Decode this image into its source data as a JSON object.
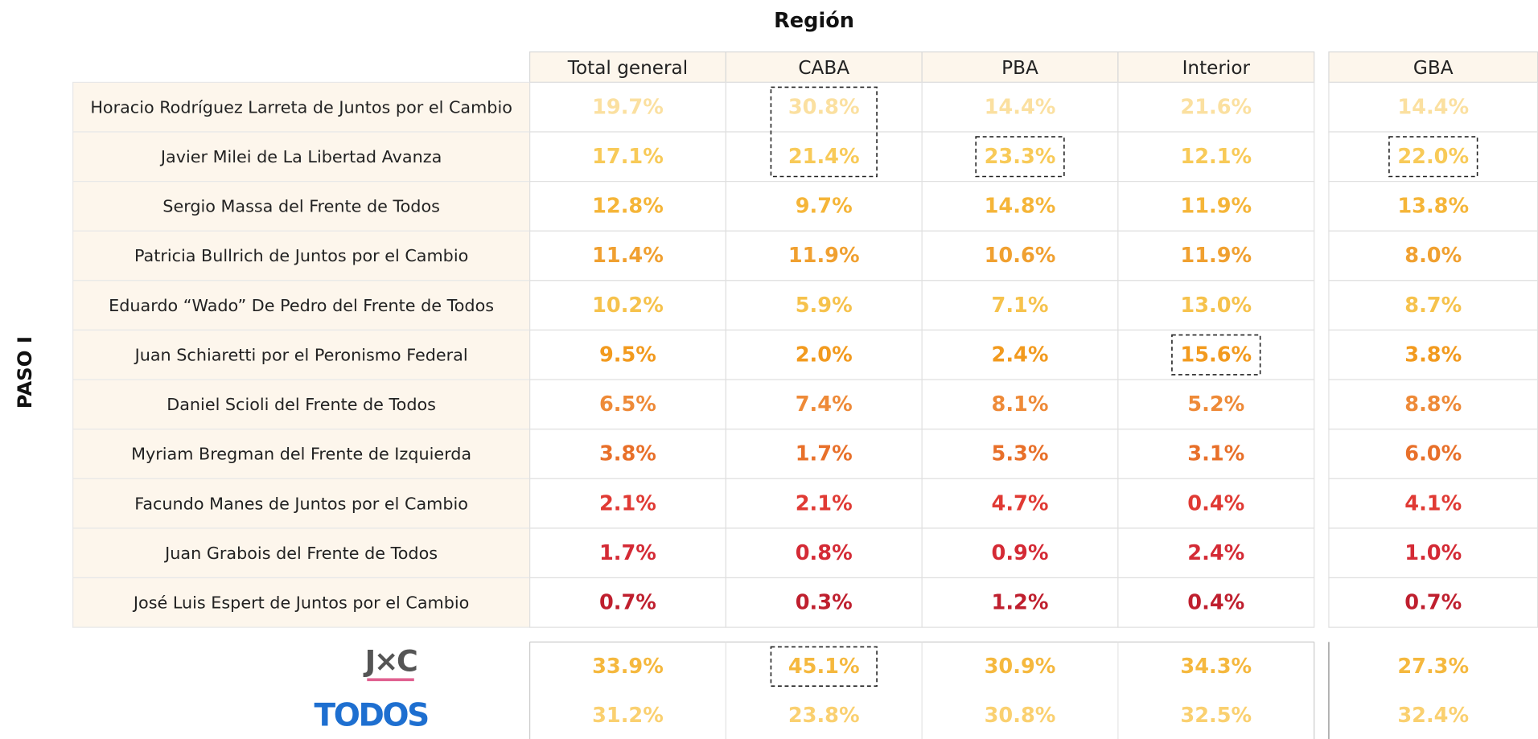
{
  "title": "Región",
  "side_label": "PASO I",
  "table": {
    "columns": [
      "Total general",
      "CABA",
      "PBA",
      "Interior",
      "GBA"
    ],
    "rows": [
      {
        "label": "Horacio Rodríguez Larreta de Juntos por el Cambio",
        "values": [
          "19.7%",
          "30.8%",
          "14.4%",
          "21.6%",
          "14.4%"
        ],
        "color": "#fbe0a0",
        "highlighted": [
          false,
          true,
          false,
          false,
          false
        ]
      },
      {
        "label": "Javier Milei de La Libertad Avanza",
        "values": [
          "17.1%",
          "21.4%",
          "23.3%",
          "12.1%",
          "22.0%"
        ],
        "color": "#f8ca58",
        "highlighted": [
          false,
          true,
          true,
          false,
          true
        ]
      },
      {
        "label": "Sergio Massa del Frente de Todos",
        "values": [
          "12.8%",
          "9.7%",
          "14.8%",
          "11.9%",
          "13.8%"
        ],
        "color": "#f5b538",
        "highlighted": [
          false,
          false,
          false,
          false,
          false
        ]
      },
      {
        "label": "Patricia Bullrich de Juntos por el Cambio",
        "values": [
          "11.4%",
          "11.9%",
          "10.6%",
          "11.9%",
          "8.0%"
        ],
        "color": "#f0a030",
        "highlighted": [
          false,
          false,
          false,
          false,
          false
        ]
      },
      {
        "label": "Eduardo “Wado” De Pedro del Frente de Todos",
        "values": [
          "10.2%",
          "5.9%",
          "7.1%",
          "13.0%",
          "8.7%"
        ],
        "color": "#f6c24c",
        "highlighted": [
          false,
          false,
          false,
          false,
          false
        ]
      },
      {
        "label": "Juan Schiaretti por el Peronismo Federal",
        "values": [
          "9.5%",
          "2.0%",
          "2.4%",
          "15.6%",
          "3.8%"
        ],
        "color": "#f29a1e",
        "highlighted": [
          false,
          false,
          false,
          true,
          false
        ]
      },
      {
        "label": "Daniel Scioli del Frente de Todos",
        "values": [
          "6.5%",
          "7.4%",
          "8.1%",
          "5.2%",
          "8.8%"
        ],
        "color": "#ee8a38",
        "highlighted": [
          false,
          false,
          false,
          false,
          false
        ]
      },
      {
        "label": "Myriam Bregman del Frente de Izquierda",
        "values": [
          "3.8%",
          "1.7%",
          "5.3%",
          "3.1%",
          "6.0%"
        ],
        "color": "#e8702a",
        "highlighted": [
          false,
          false,
          false,
          false,
          false
        ]
      },
      {
        "label": "Facundo Manes de Juntos por el Cambio",
        "values": [
          "2.1%",
          "2.1%",
          "4.7%",
          "0.4%",
          "4.1%"
        ],
        "color": "#e03a34",
        "highlighted": [
          false,
          false,
          false,
          false,
          false
        ]
      },
      {
        "label": "Juan Grabois del Frente de Todos",
        "values": [
          "1.7%",
          "0.8%",
          "0.9%",
          "2.4%",
          "1.0%"
        ],
        "color": "#d42a35",
        "highlighted": [
          false,
          false,
          false,
          false,
          false
        ]
      },
      {
        "label": "José Luis Espert de Juntos por el Cambio",
        "values": [
          "0.7%",
          "0.3%",
          "1.2%",
          "0.4%",
          "0.7%"
        ],
        "color": "#bf1f2e",
        "highlighted": [
          false,
          false,
          false,
          false,
          false
        ]
      }
    ],
    "parties": [
      {
        "label": "J×C",
        "values": [
          "33.9%",
          "45.1%",
          "30.9%",
          "34.3%",
          "27.3%"
        ],
        "color": "#f5b83e",
        "highlighted": [
          false,
          true,
          false,
          false,
          false
        ]
      },
      {
        "label": "TODOS",
        "values": [
          "31.2%",
          "23.8%",
          "30.8%",
          "32.5%",
          "32.4%"
        ],
        "color": "#fad070",
        "highlighted": [
          false,
          false,
          false,
          false,
          false
        ]
      }
    ]
  }
}
